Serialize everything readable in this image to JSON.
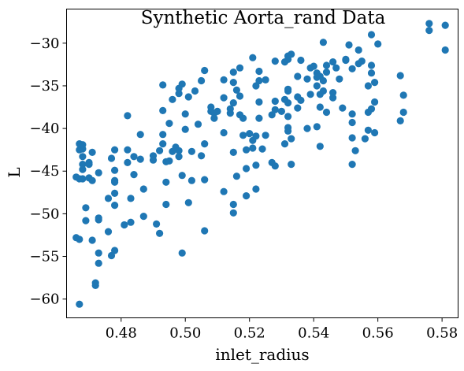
{
  "chart_data": {
    "type": "scatter",
    "title": "Synthetic Aorta_rand Data",
    "xlabel": "inlet_radius",
    "ylabel": "L",
    "xlim": [
      0.463,
      0.585
    ],
    "ylim": [
      -62.2,
      -26.0
    ],
    "xticks": [
      {
        "value": 0.48,
        "label": "0.48"
      },
      {
        "value": 0.5,
        "label": "0.50"
      },
      {
        "value": 0.52,
        "label": "0.52"
      },
      {
        "value": 0.54,
        "label": "0.54"
      },
      {
        "value": 0.56,
        "label": "0.56"
      },
      {
        "value": 0.58,
        "label": "0.58"
      }
    ],
    "yticks": [
      {
        "value": -30,
        "label": "−30"
      },
      {
        "value": -35,
        "label": "−35"
      },
      {
        "value": -40,
        "label": "−40"
      },
      {
        "value": -45,
        "label": "−45"
      },
      {
        "value": -50,
        "label": "−50"
      },
      {
        "value": -55,
        "label": "−55"
      },
      {
        "value": -60,
        "label": "−60"
      }
    ],
    "grid": false,
    "color": "#1f77b4",
    "points": [
      [
        0.466,
        -45.7
      ],
      [
        0.466,
        -52.8
      ],
      [
        0.467,
        -60.6
      ],
      [
        0.467,
        -42.5
      ],
      [
        0.467,
        -41.8
      ],
      [
        0.467,
        -45.9
      ],
      [
        0.467,
        -53.0
      ],
      [
        0.468,
        -44.8
      ],
      [
        0.468,
        -44.2
      ],
      [
        0.468,
        -42.4
      ],
      [
        0.468,
        -41.9
      ],
      [
        0.468,
        -43.3
      ],
      [
        0.468,
        -45.9
      ],
      [
        0.469,
        -50.8
      ],
      [
        0.469,
        -49.3
      ],
      [
        0.47,
        -45.8
      ],
      [
        0.47,
        -44.2
      ],
      [
        0.47,
        -44.0
      ],
      [
        0.471,
        -53.1
      ],
      [
        0.471,
        -42.8
      ],
      [
        0.471,
        -46.1
      ],
      [
        0.472,
        -58.1
      ],
      [
        0.472,
        -58.4
      ],
      [
        0.473,
        -54.6
      ],
      [
        0.473,
        -55.8
      ],
      [
        0.473,
        -50.5
      ],
      [
        0.473,
        -50.7
      ],
      [
        0.473,
        -45.2
      ],
      [
        0.476,
        -52.1
      ],
      [
        0.476,
        -48.2
      ],
      [
        0.477,
        -43.5
      ],
      [
        0.477,
        -54.9
      ],
      [
        0.478,
        -46.3
      ],
      [
        0.478,
        -44.9
      ],
      [
        0.478,
        -46.1
      ],
      [
        0.478,
        -47.6
      ],
      [
        0.478,
        -49.0
      ],
      [
        0.478,
        -54.3
      ],
      [
        0.478,
        -42.5
      ],
      [
        0.481,
        -51.3
      ],
      [
        0.482,
        -38.5
      ],
      [
        0.482,
        -42.5
      ],
      [
        0.482,
        -44.0
      ],
      [
        0.483,
        -51.0
      ],
      [
        0.483,
        -48.2
      ],
      [
        0.484,
        -43.3
      ],
      [
        0.484,
        -45.4
      ],
      [
        0.486,
        -40.7
      ],
      [
        0.486,
        -43.6
      ],
      [
        0.487,
        -47.1
      ],
      [
        0.487,
        -50.3
      ],
      [
        0.49,
        -43.7
      ],
      [
        0.49,
        -43.2
      ],
      [
        0.491,
        -51.2
      ],
      [
        0.492,
        -42.6
      ],
      [
        0.492,
        -52.3
      ],
      [
        0.493,
        -34.9
      ],
      [
        0.493,
        -37.9
      ],
      [
        0.493,
        -40.7
      ],
      [
        0.493,
        -41.8
      ],
      [
        0.494,
        -46.3
      ],
      [
        0.494,
        -48.9
      ],
      [
        0.494,
        -43.9
      ],
      [
        0.495,
        -39.4
      ],
      [
        0.495,
        -43.8
      ],
      [
        0.496,
        -36.6
      ],
      [
        0.496,
        -42.7
      ],
      [
        0.497,
        -42.2
      ],
      [
        0.498,
        -43.3
      ],
      [
        0.498,
        -42.6
      ],
      [
        0.498,
        -35.9
      ],
      [
        0.498,
        -35.3
      ],
      [
        0.499,
        -34.8
      ],
      [
        0.499,
        -45.5
      ],
      [
        0.499,
        -54.6
      ],
      [
        0.5,
        -38.3
      ],
      [
        0.5,
        -40.1
      ],
      [
        0.501,
        -48.7
      ],
      [
        0.501,
        -36.3
      ],
      [
        0.502,
        -46.1
      ],
      [
        0.502,
        -42.7
      ],
      [
        0.503,
        -35.6
      ],
      [
        0.504,
        -39.5
      ],
      [
        0.505,
        -34.4
      ],
      [
        0.505,
        -43.2
      ],
      [
        0.506,
        -33.2
      ],
      [
        0.506,
        -46.0
      ],
      [
        0.506,
        -52.0
      ],
      [
        0.506,
        -41.8
      ],
      [
        0.508,
        -37.5
      ],
      [
        0.508,
        -38.0
      ],
      [
        0.509,
        -38.2
      ],
      [
        0.509,
        -38.8
      ],
      [
        0.51,
        -38.0
      ],
      [
        0.512,
        -34.3
      ],
      [
        0.512,
        -36.4
      ],
      [
        0.512,
        -40.5
      ],
      [
        0.512,
        -47.4
      ],
      [
        0.514,
        -37.7
      ],
      [
        0.514,
        -38.2
      ],
      [
        0.515,
        -33.4
      ],
      [
        0.515,
        -34.6
      ],
      [
        0.515,
        -37.0
      ],
      [
        0.515,
        -42.8
      ],
      [
        0.515,
        -48.9
      ],
      [
        0.515,
        -49.9
      ],
      [
        0.516,
        -45.6
      ],
      [
        0.516,
        -35.5
      ],
      [
        0.517,
        -32.9
      ],
      [
        0.517,
        -36.2
      ],
      [
        0.517,
        -38.4
      ],
      [
        0.518,
        -38.8
      ],
      [
        0.518,
        -40.8
      ],
      [
        0.519,
        -47.9
      ],
      [
        0.519,
        -42.5
      ],
      [
        0.519,
        -44.7
      ],
      [
        0.52,
        -40.6
      ],
      [
        0.521,
        -31.7
      ],
      [
        0.521,
        -41.4
      ],
      [
        0.521,
        -42.3
      ],
      [
        0.522,
        -35.0
      ],
      [
        0.522,
        -40.9
      ],
      [
        0.522,
        -44.3
      ],
      [
        0.522,
        -47.1
      ],
      [
        0.523,
        -33.3
      ],
      [
        0.523,
        -34.4
      ],
      [
        0.523,
        -36.9
      ],
      [
        0.523,
        -38.8
      ],
      [
        0.524,
        -42.4
      ],
      [
        0.525,
        -34.3
      ],
      [
        0.525,
        -40.8
      ],
      [
        0.527,
        -44.0
      ],
      [
        0.527,
        -38.4
      ],
      [
        0.528,
        -32.1
      ],
      [
        0.528,
        -36.8
      ],
      [
        0.528,
        -37.8
      ],
      [
        0.528,
        -44.4
      ],
      [
        0.53,
        -38.0
      ],
      [
        0.531,
        -32.2
      ],
      [
        0.531,
        -36.6
      ],
      [
        0.531,
        -41.8
      ],
      [
        0.532,
        -35.4
      ],
      [
        0.532,
        -35.6
      ],
      [
        0.532,
        -31.5
      ],
      [
        0.532,
        -31.9
      ],
      [
        0.532,
        -37.0
      ],
      [
        0.532,
        -38.6
      ],
      [
        0.532,
        -39.9
      ],
      [
        0.532,
        -40.3
      ],
      [
        0.533,
        -31.3
      ],
      [
        0.533,
        -41.2
      ],
      [
        0.533,
        -44.2
      ],
      [
        0.535,
        -33.9
      ],
      [
        0.535,
        -37.6
      ],
      [
        0.535,
        -36.3
      ],
      [
        0.536,
        -32.0
      ],
      [
        0.536,
        -36.7
      ],
      [
        0.538,
        -34.2
      ],
      [
        0.538,
        -40.0
      ],
      [
        0.539,
        -32.9
      ],
      [
        0.539,
        -36.0
      ],
      [
        0.54,
        -32.7
      ],
      [
        0.541,
        -33.5
      ],
      [
        0.541,
        -34.0
      ],
      [
        0.541,
        -35.0
      ],
      [
        0.541,
        -39.8
      ],
      [
        0.542,
        -33.9
      ],
      [
        0.542,
        -36.0
      ],
      [
        0.542,
        -37.5
      ],
      [
        0.542,
        -42.1
      ],
      [
        0.543,
        -34.4
      ],
      [
        0.543,
        -35.6
      ],
      [
        0.543,
        -29.9
      ],
      [
        0.544,
        -38.1
      ],
      [
        0.544,
        -32.6
      ],
      [
        0.544,
        -33.4
      ],
      [
        0.546,
        -35.8
      ],
      [
        0.546,
        -36.4
      ],
      [
        0.546,
        -32.2
      ],
      [
        0.547,
        -32.9
      ],
      [
        0.548,
        -34.2
      ],
      [
        0.549,
        -37.6
      ],
      [
        0.55,
        -32.0
      ],
      [
        0.55,
        -31.9
      ],
      [
        0.551,
        -30.2
      ],
      [
        0.552,
        -33.0
      ],
      [
        0.552,
        -38.3
      ],
      [
        0.552,
        -39.3
      ],
      [
        0.552,
        -44.2
      ],
      [
        0.552,
        -41.1
      ],
      [
        0.553,
        -42.6
      ],
      [
        0.554,
        -30.8
      ],
      [
        0.554,
        -32.4
      ],
      [
        0.555,
        -32.1
      ],
      [
        0.556,
        -41.2
      ],
      [
        0.557,
        -38.1
      ],
      [
        0.557,
        -40.2
      ],
      [
        0.557,
        -35.0
      ],
      [
        0.558,
        -32.6
      ],
      [
        0.558,
        -29.0
      ],
      [
        0.558,
        -33.5
      ],
      [
        0.558,
        -37.7
      ],
      [
        0.559,
        -34.6
      ],
      [
        0.559,
        -36.9
      ],
      [
        0.559,
        -40.5
      ],
      [
        0.56,
        -30.1
      ],
      [
        0.567,
        -33.8
      ],
      [
        0.567,
        -39.1
      ],
      [
        0.568,
        -36.1
      ],
      [
        0.568,
        -38.1
      ],
      [
        0.576,
        -27.7
      ],
      [
        0.576,
        -28.5
      ],
      [
        0.581,
        -27.9
      ],
      [
        0.581,
        -30.8
      ]
    ]
  }
}
